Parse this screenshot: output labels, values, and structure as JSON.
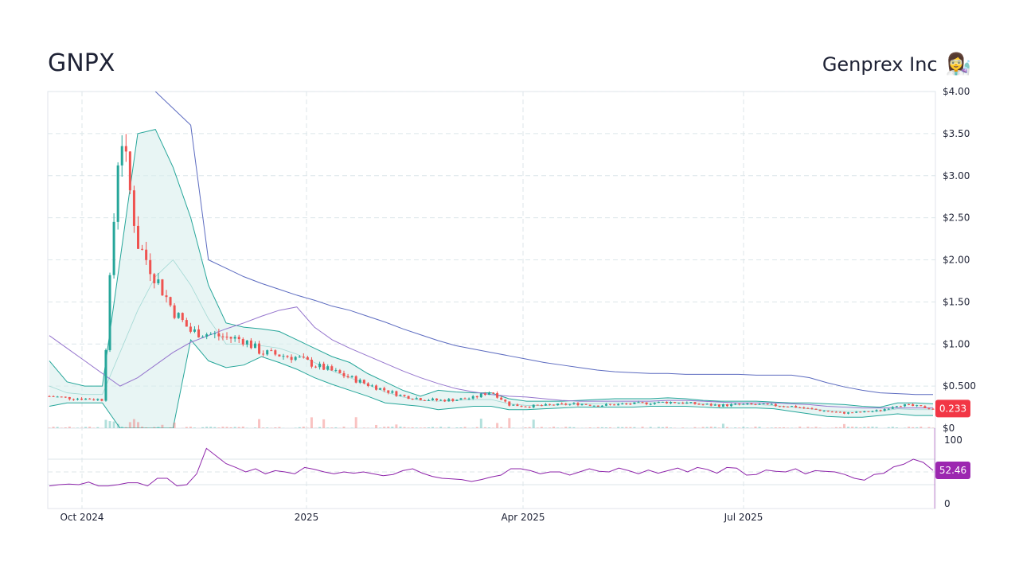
{
  "header": {
    "ticker": "GNPX",
    "company_name": "Genprex Inc",
    "company_emoji": "👩‍🔬"
  },
  "colors": {
    "up": "#26a69a",
    "down": "#ef5350",
    "bb_line": "#26a69a",
    "bb_fill": "#d9eeec",
    "ma_slow": "#5c6bc0",
    "ma_fast": "#9575cd",
    "rsi": "#8e24aa",
    "last_price_badge": "#f23645",
    "rsi_badge": "#9c27b0"
  },
  "chart_data": [
    {
      "type": "candlestick",
      "title": "",
      "x_dates": [
        "Oct 2024",
        "2025",
        "Apr 2025",
        "Jul 2025"
      ],
      "y_ticks": [
        "$4.00",
        "$3.50",
        "$3.00",
        "$2.50",
        "$2.00",
        "$1.50",
        "$1.00",
        "$0.500",
        "$0"
      ],
      "ylim": [
        0,
        4.0
      ],
      "last_price": "0.233",
      "grid": true,
      "price_series": {
        "name": "",
        "weeks": [
          0,
          1,
          2,
          3,
          4,
          5,
          6,
          7,
          8,
          9,
          10,
          11,
          12,
          13,
          14,
          15,
          16,
          17,
          18,
          19,
          20,
          21,
          22,
          23,
          24,
          25,
          26,
          27,
          28,
          29,
          30,
          31,
          32,
          33,
          34,
          35,
          36,
          37,
          38,
          39,
          40,
          41,
          42,
          43,
          44,
          45,
          46,
          47,
          48,
          49,
          50
        ],
        "close": [
          0.38,
          0.36,
          0.35,
          0.34,
          3.6,
          2.2,
          1.8,
          1.4,
          1.15,
          1.12,
          1.08,
          1.05,
          0.9,
          0.87,
          0.84,
          0.75,
          0.68,
          0.6,
          0.52,
          0.45,
          0.38,
          0.35,
          0.33,
          0.34,
          0.36,
          0.44,
          0.28,
          0.26,
          0.27,
          0.28,
          0.29,
          0.27,
          0.28,
          0.29,
          0.3,
          0.31,
          0.3,
          0.28,
          0.27,
          0.28,
          0.28,
          0.27,
          0.26,
          0.23,
          0.2,
          0.18,
          0.19,
          0.21,
          0.28,
          0.26,
          0.233
        ]
      },
      "bollinger": {
        "upper": [
          0.8,
          0.55,
          0.5,
          0.5,
          2.0,
          3.5,
          3.55,
          3.1,
          2.5,
          1.7,
          1.25,
          1.2,
          1.18,
          1.15,
          1.05,
          0.95,
          0.85,
          0.78,
          0.65,
          0.55,
          0.45,
          0.38,
          0.45,
          0.43,
          0.42,
          0.42,
          0.35,
          0.32,
          0.32,
          0.32,
          0.33,
          0.34,
          0.35,
          0.35,
          0.35,
          0.36,
          0.35,
          0.33,
          0.32,
          0.32,
          0.32,
          0.31,
          0.3,
          0.3,
          0.29,
          0.28,
          0.26,
          0.25,
          0.3,
          0.3,
          0.29
        ],
        "lower": [
          0.26,
          0.3,
          0.3,
          0.3,
          0.0,
          0.0,
          0.0,
          0.0,
          1.05,
          0.8,
          0.72,
          0.75,
          0.85,
          0.78,
          0.7,
          0.6,
          0.52,
          0.45,
          0.38,
          0.3,
          0.28,
          0.26,
          0.22,
          0.24,
          0.26,
          0.26,
          0.22,
          0.22,
          0.23,
          0.24,
          0.25,
          0.25,
          0.25,
          0.25,
          0.26,
          0.26,
          0.26,
          0.25,
          0.24,
          0.24,
          0.24,
          0.23,
          0.2,
          0.17,
          0.14,
          0.13,
          0.13,
          0.15,
          0.17,
          0.15,
          0.15
        ],
        "middle": [
          0.5,
          0.42,
          0.4,
          0.4,
          0.9,
          1.4,
          1.8,
          2.0,
          1.7,
          1.3,
          1.0,
          1.0,
          0.98,
          0.95,
          0.88,
          0.78,
          0.68,
          0.6,
          0.52,
          0.43,
          0.37,
          0.33,
          0.32,
          0.33,
          0.34,
          0.34,
          0.29,
          0.27,
          0.27,
          0.28,
          0.29,
          0.29,
          0.3,
          0.3,
          0.3,
          0.31,
          0.3,
          0.29,
          0.28,
          0.28,
          0.28,
          0.27,
          0.25,
          0.23,
          0.21,
          0.2,
          0.2,
          0.2,
          0.23,
          0.22,
          0.22
        ]
      },
      "ma_slow": [
        null,
        null,
        null,
        null,
        null,
        null,
        4.0,
        3.8,
        3.6,
        2.0,
        1.9,
        1.8,
        1.72,
        1.65,
        1.58,
        1.52,
        1.45,
        1.4,
        1.33,
        1.26,
        1.18,
        1.11,
        1.04,
        0.98,
        0.94,
        0.9,
        0.86,
        0.82,
        0.78,
        0.75,
        0.72,
        0.69,
        0.67,
        0.66,
        0.65,
        0.65,
        0.64,
        0.64,
        0.64,
        0.64,
        0.63,
        0.63,
        0.63,
        0.6,
        0.54,
        0.49,
        0.45,
        0.42,
        0.41,
        0.4,
        0.4
      ],
      "ma_fast": [
        1.1,
        0.95,
        0.8,
        0.65,
        0.5,
        0.6,
        0.75,
        0.9,
        1.02,
        1.1,
        1.18,
        1.25,
        1.33,
        1.4,
        1.44,
        1.2,
        1.05,
        0.95,
        0.86,
        0.77,
        0.68,
        0.6,
        0.53,
        0.47,
        0.43,
        0.4,
        0.38,
        0.37,
        0.35,
        0.33,
        0.32,
        0.32,
        0.32,
        0.32,
        0.32,
        0.33,
        0.33,
        0.32,
        0.31,
        0.3,
        0.3,
        0.3,
        0.29,
        0.28,
        0.26,
        0.25,
        0.24,
        0.24,
        0.24,
        0.24,
        0.24
      ]
    },
    {
      "type": "line",
      "title": "",
      "name": "",
      "y_ticks": [
        "100",
        "0"
      ],
      "ylim": [
        0,
        100
      ],
      "last_value": "52.46",
      "values": [
        28,
        30,
        31,
        30,
        34,
        28,
        28,
        30,
        33,
        33,
        28,
        40,
        40,
        28,
        30,
        47,
        87,
        75,
        63,
        57,
        50,
        55,
        47,
        52,
        50,
        47,
        57,
        54,
        50,
        47,
        50,
        48,
        50,
        47,
        44,
        46,
        52,
        55,
        48,
        43,
        40,
        39,
        38,
        35,
        38,
        42,
        45,
        55,
        55,
        52,
        47,
        50,
        50,
        45,
        50,
        55,
        51,
        50,
        56,
        52,
        47,
        53,
        48,
        52,
        56,
        50,
        57,
        54,
        48,
        57,
        56,
        45,
        46,
        53,
        51,
        50,
        55,
        47,
        52,
        51,
        50,
        46,
        40,
        37,
        46,
        48,
        58,
        62,
        70,
        65,
        52.46
      ]
    }
  ]
}
